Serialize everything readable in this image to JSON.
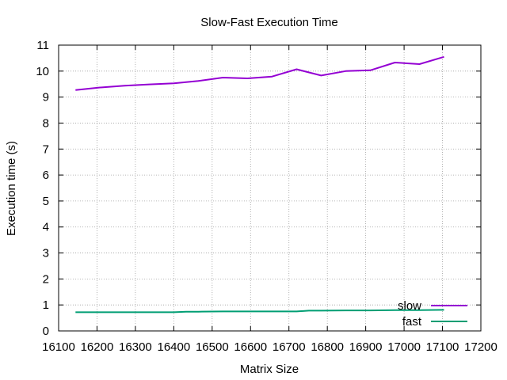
{
  "chart_data": {
    "type": "line",
    "title": "Slow-Fast Execution Time",
    "xlabel": "Matrix Size",
    "ylabel": "Execution time (s)",
    "xlim": [
      16100,
      17200
    ],
    "ylim": [
      0,
      11
    ],
    "xticks": [
      16100,
      16200,
      16300,
      16400,
      16500,
      16600,
      16700,
      16800,
      16900,
      17000,
      17100,
      17200
    ],
    "yticks": [
      0,
      1,
      2,
      3,
      4,
      5,
      6,
      7,
      8,
      9,
      10,
      11
    ],
    "grid": true,
    "legend": "bottom-right",
    "series": [
      {
        "name": "slow",
        "color": "#9400d3",
        "x": [
          16144,
          16208,
          16272,
          16336,
          16400,
          16464,
          16528,
          16592,
          16656,
          16720,
          16784,
          16848,
          16912,
          16976,
          17040,
          17104
        ],
        "y": [
          9.27,
          9.37,
          9.44,
          9.49,
          9.53,
          9.62,
          9.75,
          9.72,
          9.79,
          10.07,
          9.83,
          10.0,
          10.03,
          10.33,
          10.27,
          10.55
        ]
      },
      {
        "name": "fast",
        "color": "#009e73",
        "x": [
          16144,
          16208,
          16272,
          16336,
          16400,
          16432,
          16464,
          16528,
          16592,
          16656,
          16720,
          16752,
          16784,
          16848,
          16912,
          16976,
          17040,
          17104
        ],
        "y": [
          0.72,
          0.72,
          0.72,
          0.72,
          0.72,
          0.74,
          0.74,
          0.75,
          0.75,
          0.75,
          0.75,
          0.78,
          0.78,
          0.79,
          0.79,
          0.8,
          0.8,
          0.81
        ]
      }
    ]
  }
}
